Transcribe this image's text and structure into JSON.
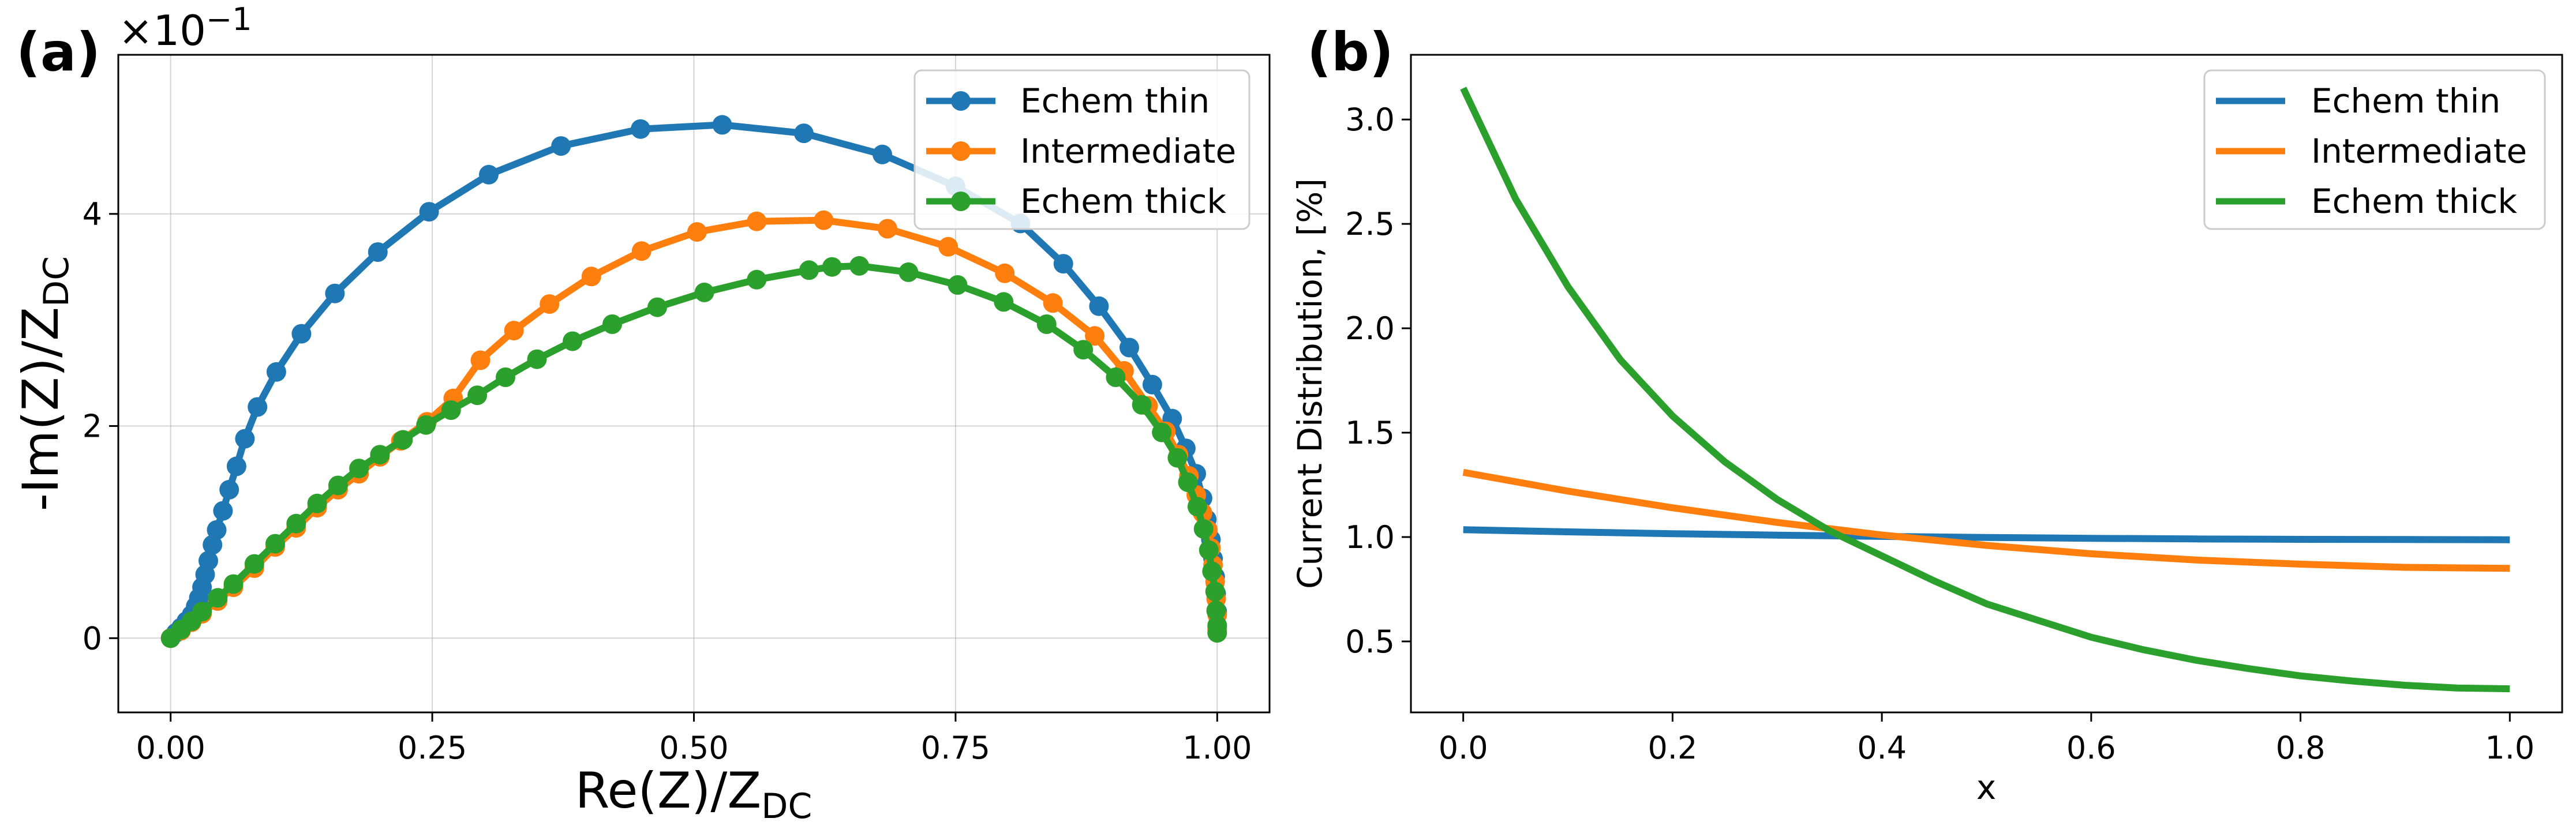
{
  "chart_data": [
    {
      "type": "line",
      "panel_label": "(a)",
      "xlabel": "Re(Z)/Z",
      "xlabel_sub": "DC",
      "ylabel": "-Im(Z)/Z",
      "ylabel_sub": "DC",
      "y_offset_text": "×10",
      "y_offset_exp": "−1",
      "xlim": [
        -0.05,
        1.05
      ],
      "ylim": [
        -0.7,
        5.5
      ],
      "xticks": [
        0.0,
        0.25,
        0.5,
        0.75,
        1.0
      ],
      "xtick_labels": [
        "0.00",
        "0.25",
        "0.50",
        "0.75",
        "1.00"
      ],
      "yticks": [
        0,
        2,
        4
      ],
      "ytick_labels": [
        "0",
        "2",
        "4"
      ],
      "grid": true,
      "legend_position": "top-right",
      "markers": true,
      "series": [
        {
          "name": "Echem thin",
          "color": "#1f77b4",
          "points": [
            [
              0.0,
              0.0
            ],
            [
              0.005,
              0.05
            ],
            [
              0.01,
              0.1
            ],
            [
              0.015,
              0.16
            ],
            [
              0.02,
              0.22
            ],
            [
              0.024,
              0.3
            ],
            [
              0.027,
              0.38
            ],
            [
              0.03,
              0.48
            ],
            [
              0.033,
              0.6
            ],
            [
              0.036,
              0.73
            ],
            [
              0.04,
              0.88
            ],
            [
              0.044,
              1.02
            ],
            [
              0.05,
              1.2
            ],
            [
              0.056,
              1.4
            ],
            [
              0.063,
              1.62
            ],
            [
              0.071,
              1.88
            ],
            [
              0.083,
              2.18
            ],
            [
              0.101,
              2.51
            ],
            [
              0.125,
              2.87
            ],
            [
              0.157,
              3.25
            ],
            [
              0.198,
              3.64
            ],
            [
              0.247,
              4.02
            ],
            [
              0.304,
              4.37
            ],
            [
              0.373,
              4.64
            ],
            [
              0.449,
              4.8
            ],
            [
              0.527,
              4.84
            ],
            [
              0.605,
              4.76
            ],
            [
              0.68,
              4.56
            ],
            [
              0.75,
              4.26
            ],
            [
              0.812,
              3.91
            ],
            [
              0.853,
              3.53
            ],
            [
              0.887,
              3.13
            ],
            [
              0.916,
              2.74
            ],
            [
              0.938,
              2.39
            ],
            [
              0.957,
              2.07
            ],
            [
              0.97,
              1.79
            ],
            [
              0.98,
              1.55
            ],
            [
              0.986,
              1.32
            ],
            [
              0.99,
              1.12
            ],
            [
              0.994,
              0.93
            ],
            [
              0.996,
              0.75
            ],
            [
              0.998,
              0.58
            ],
            [
              0.999,
              0.42
            ],
            [
              1.0,
              0.25
            ],
            [
              1.0,
              0.1
            ]
          ]
        },
        {
          "name": "Intermediate",
          "color": "#ff7f0e",
          "points": [
            [
              0.0,
              0.0
            ],
            [
              0.01,
              0.07
            ],
            [
              0.02,
              0.15
            ],
            [
              0.03,
              0.23
            ],
            [
              0.045,
              0.35
            ],
            [
              0.06,
              0.48
            ],
            [
              0.08,
              0.66
            ],
            [
              0.1,
              0.86
            ],
            [
              0.12,
              1.04
            ],
            [
              0.14,
              1.23
            ],
            [
              0.16,
              1.4
            ],
            [
              0.18,
              1.55
            ],
            [
              0.2,
              1.71
            ],
            [
              0.22,
              1.86
            ],
            [
              0.245,
              2.04
            ],
            [
              0.27,
              2.26
            ],
            [
              0.296,
              2.62
            ],
            [
              0.328,
              2.9
            ],
            [
              0.362,
              3.15
            ],
            [
              0.402,
              3.41
            ],
            [
              0.45,
              3.65
            ],
            [
              0.503,
              3.83
            ],
            [
              0.56,
              3.93
            ],
            [
              0.624,
              3.94
            ],
            [
              0.685,
              3.86
            ],
            [
              0.743,
              3.69
            ],
            [
              0.797,
              3.44
            ],
            [
              0.843,
              3.16
            ],
            [
              0.883,
              2.85
            ],
            [
              0.911,
              2.52
            ],
            [
              0.934,
              2.19
            ],
            [
              0.951,
              1.95
            ],
            [
              0.963,
              1.73
            ],
            [
              0.973,
              1.53
            ],
            [
              0.98,
              1.35
            ],
            [
              0.986,
              1.18
            ],
            [
              0.991,
              1.02
            ],
            [
              0.994,
              0.85
            ],
            [
              0.996,
              0.69
            ],
            [
              0.998,
              0.53
            ],
            [
              0.999,
              0.37
            ],
            [
              1.0,
              0.22
            ],
            [
              1.0,
              0.08
            ]
          ]
        },
        {
          "name": "Echem thick",
          "color": "#2ca02c",
          "points": [
            [
              0.0,
              0.0
            ],
            [
              0.01,
              0.08
            ],
            [
              0.02,
              0.16
            ],
            [
              0.03,
              0.25
            ],
            [
              0.045,
              0.38
            ],
            [
              0.06,
              0.51
            ],
            [
              0.08,
              0.7
            ],
            [
              0.1,
              0.89
            ],
            [
              0.12,
              1.08
            ],
            [
              0.14,
              1.27
            ],
            [
              0.16,
              1.44
            ],
            [
              0.18,
              1.6
            ],
            [
              0.2,
              1.73
            ],
            [
              0.222,
              1.87
            ],
            [
              0.244,
              2.01
            ],
            [
              0.268,
              2.15
            ],
            [
              0.293,
              2.29
            ],
            [
              0.32,
              2.46
            ],
            [
              0.35,
              2.63
            ],
            [
              0.384,
              2.8
            ],
            [
              0.422,
              2.96
            ],
            [
              0.465,
              3.12
            ],
            [
              0.51,
              3.26
            ],
            [
              0.56,
              3.38
            ],
            [
              0.61,
              3.47
            ],
            [
              0.632,
              3.5
            ],
            [
              0.658,
              3.51
            ],
            [
              0.705,
              3.45
            ],
            [
              0.752,
              3.33
            ],
            [
              0.796,
              3.17
            ],
            [
              0.837,
              2.96
            ],
            [
              0.872,
              2.72
            ],
            [
              0.903,
              2.46
            ],
            [
              0.928,
              2.2
            ],
            [
              0.947,
              1.94
            ],
            [
              0.962,
              1.7
            ],
            [
              0.972,
              1.47
            ],
            [
              0.981,
              1.24
            ],
            [
              0.987,
              1.03
            ],
            [
              0.992,
              0.83
            ],
            [
              0.995,
              0.63
            ],
            [
              0.998,
              0.44
            ],
            [
              0.999,
              0.26
            ],
            [
              1.0,
              0.12
            ],
            [
              1.0,
              0.05
            ]
          ]
        }
      ]
    },
    {
      "type": "line",
      "panel_label": "(b)",
      "xlabel": "x",
      "ylabel": "Current Distribution, [%]",
      "xlim": [
        -0.05,
        1.05
      ],
      "ylim": [
        0.16,
        3.31
      ],
      "xticks": [
        0.0,
        0.2,
        0.4,
        0.6,
        0.8,
        1.0
      ],
      "xtick_labels": [
        "0.0",
        "0.2",
        "0.4",
        "0.6",
        "0.8",
        "1.0"
      ],
      "yticks": [
        0.5,
        1.0,
        1.5,
        2.0,
        2.5,
        3.0
      ],
      "ytick_labels": [
        "0.5",
        "1.0",
        "1.5",
        "2.0",
        "2.5",
        "3.0"
      ],
      "grid": false,
      "legend_position": "top-right",
      "markers": false,
      "series": [
        {
          "name": "Echem thin",
          "color": "#1f77b4",
          "points": [
            [
              0.0,
              1.035
            ],
            [
              0.1,
              1.025
            ],
            [
              0.2,
              1.016
            ],
            [
              0.3,
              1.009
            ],
            [
              0.4,
              1.003
            ],
            [
              0.5,
              0.998
            ],
            [
              0.6,
              0.994
            ],
            [
              0.7,
              0.991
            ],
            [
              0.8,
              0.989
            ],
            [
              0.9,
              0.988
            ],
            [
              1.0,
              0.987
            ]
          ]
        },
        {
          "name": "Intermediate",
          "color": "#ff7f0e",
          "points": [
            [
              0.0,
              1.31
            ],
            [
              0.1,
              1.22
            ],
            [
              0.2,
              1.14
            ],
            [
              0.3,
              1.07
            ],
            [
              0.4,
              1.01
            ],
            [
              0.5,
              0.96
            ],
            [
              0.6,
              0.92
            ],
            [
              0.7,
              0.89
            ],
            [
              0.8,
              0.87
            ],
            [
              0.9,
              0.855
            ],
            [
              1.0,
              0.85
            ]
          ]
        },
        {
          "name": "Echem thick",
          "color": "#2ca02c",
          "points": [
            [
              0.0,
              3.15
            ],
            [
              0.05,
              2.62
            ],
            [
              0.1,
              2.2
            ],
            [
              0.15,
              1.85
            ],
            [
              0.2,
              1.58
            ],
            [
              0.25,
              1.36
            ],
            [
              0.3,
              1.18
            ],
            [
              0.35,
              1.03
            ],
            [
              0.4,
              0.91
            ],
            [
              0.45,
              0.79
            ],
            [
              0.5,
              0.68
            ],
            [
              0.55,
              0.6
            ],
            [
              0.6,
              0.52
            ],
            [
              0.65,
              0.46
            ],
            [
              0.7,
              0.41
            ],
            [
              0.75,
              0.37
            ],
            [
              0.8,
              0.335
            ],
            [
              0.85,
              0.31
            ],
            [
              0.9,
              0.29
            ],
            [
              0.95,
              0.277
            ],
            [
              1.0,
              0.273
            ]
          ]
        }
      ]
    }
  ]
}
